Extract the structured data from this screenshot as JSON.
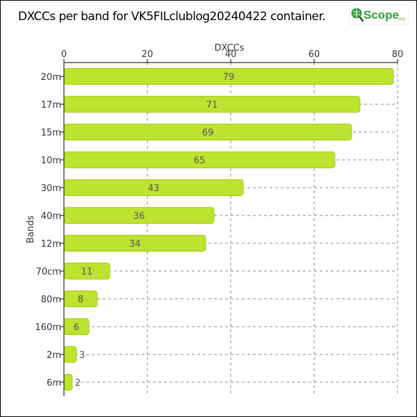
{
  "header": {
    "title": "DXCCs per band for VK5FILclublog20240422 container.",
    "logo_text": "Scope",
    "logo_suffix": ".org"
  },
  "chart_data": {
    "type": "bar",
    "orientation": "horizontal",
    "title": "DXCCs per band for VK5FILclublog20240422 container.",
    "xlabel": "DXCCs",
    "ylabel": "Bands",
    "xlim": [
      0,
      80
    ],
    "xticks": [
      0,
      20,
      40,
      60,
      80
    ],
    "categories": [
      "20m",
      "17m",
      "15m",
      "10m",
      "30m",
      "40m",
      "12m",
      "70cm",
      "80m",
      "160m",
      "2m",
      "6m"
    ],
    "values": [
      79,
      71,
      69,
      65,
      43,
      36,
      34,
      11,
      8,
      6,
      3,
      2
    ],
    "x_axis_position": "top",
    "grid": true,
    "legend": "none",
    "colors": {
      "bar": "#bde22f",
      "bar_edge": "#a8cc1f",
      "grid": "#888888",
      "text": "#333333",
      "logo_green": "#2e9e3a"
    }
  }
}
